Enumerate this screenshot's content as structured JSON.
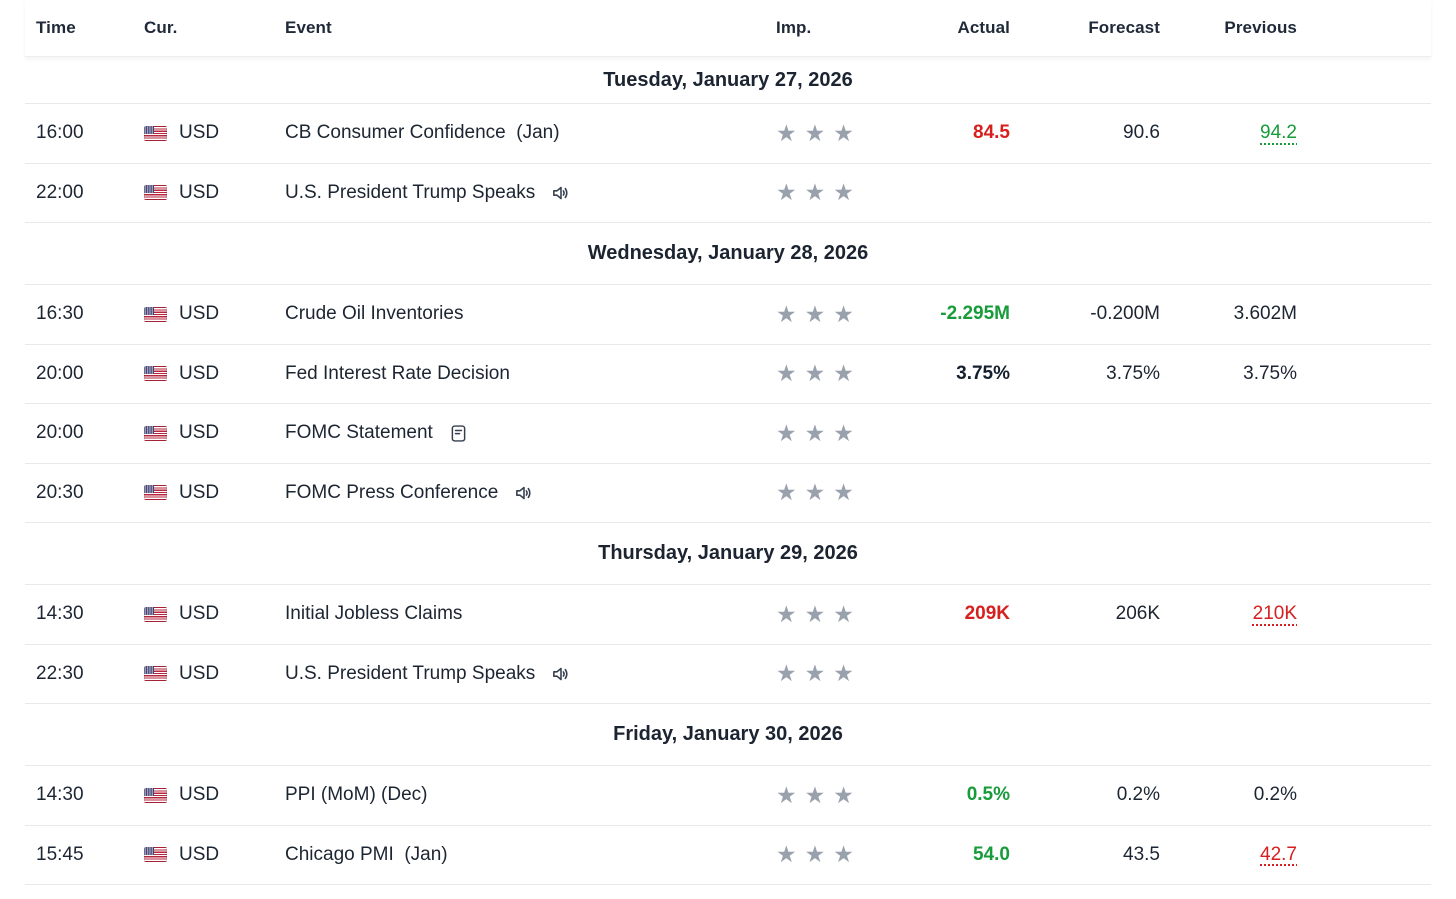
{
  "header": {
    "columns": [
      {
        "id": "time",
        "label": "Time"
      },
      {
        "id": "currency",
        "label": "Cur."
      },
      {
        "id": "event",
        "label": "Event"
      },
      {
        "id": "importance",
        "label": "Imp."
      },
      {
        "id": "actual",
        "label": "Actual"
      },
      {
        "id": "forecast",
        "label": "Forecast"
      },
      {
        "id": "previous",
        "label": "Previous"
      }
    ]
  },
  "icons": {
    "star_glyph": "★",
    "flag": "us-flag-icon",
    "speaker": "speaker-icon",
    "document": "report-icon"
  },
  "colors": {
    "positive": "#189b3a",
    "negative": "#d6201f",
    "text": "#1c2532",
    "star": "#99a1ad",
    "divider": "#e7e9ec"
  },
  "groups": [
    {
      "date": "Tuesday, January 27, 2026",
      "rows": [
        {
          "time": "16:00",
          "currency": "USD",
          "event": "CB Consumer Confidence  (Jan)",
          "icon": null,
          "importance": 3,
          "actual": "84.5",
          "actual_state": "negative",
          "forecast": "90.6",
          "previous": "94.2",
          "previous_state": "up"
        },
        {
          "time": "22:00",
          "currency": "USD",
          "event": "U.S. President Trump Speaks",
          "icon": "speaker",
          "importance": 3,
          "actual": null,
          "forecast": null,
          "previous": null
        }
      ]
    },
    {
      "date": "Wednesday, January 28, 2026",
      "rows": [
        {
          "time": "16:30",
          "currency": "USD",
          "event": "Crude Oil Inventories",
          "icon": null,
          "importance": 3,
          "actual": "-2.295M",
          "actual_state": "positive",
          "forecast": "-0.200M",
          "previous": "3.602M",
          "previous_state": null
        },
        {
          "time": "20:00",
          "currency": "USD",
          "event": "Fed Interest Rate Decision",
          "icon": null,
          "importance": 3,
          "actual": "3.75%",
          "actual_state": "neutral",
          "forecast": "3.75%",
          "previous": "3.75%",
          "previous_state": null
        },
        {
          "time": "20:00",
          "currency": "USD",
          "event": "FOMC Statement",
          "icon": "document",
          "importance": 3,
          "actual": null,
          "forecast": null,
          "previous": null
        },
        {
          "time": "20:30",
          "currency": "USD",
          "event": "FOMC Press Conference",
          "icon": "speaker",
          "importance": 3,
          "actual": null,
          "forecast": null,
          "previous": null
        }
      ]
    },
    {
      "date": "Thursday, January 29, 2026",
      "rows": [
        {
          "time": "14:30",
          "currency": "USD",
          "event": "Initial Jobless Claims",
          "icon": null,
          "importance": 3,
          "actual": "209K",
          "actual_state": "negative",
          "forecast": "206K",
          "previous": "210K",
          "previous_state": "down"
        },
        {
          "time": "22:30",
          "currency": "USD",
          "event": "U.S. President Trump Speaks",
          "icon": "speaker",
          "importance": 3,
          "actual": null,
          "forecast": null,
          "previous": null
        }
      ]
    },
    {
      "date": "Friday, January 30, 2026",
      "rows": [
        {
          "time": "14:30",
          "currency": "USD",
          "event": "PPI (MoM) (Dec)",
          "icon": null,
          "importance": 3,
          "actual": "0.5%",
          "actual_state": "positive",
          "forecast": "0.2%",
          "previous": "0.2%",
          "previous_state": null
        },
        {
          "time": "15:45",
          "currency": "USD",
          "event": "Chicago PMI  (Jan)",
          "icon": null,
          "importance": 3,
          "actual": "54.0",
          "actual_state": "positive",
          "forecast": "43.5",
          "previous": "42.7",
          "previous_state": "down"
        }
      ]
    }
  ]
}
